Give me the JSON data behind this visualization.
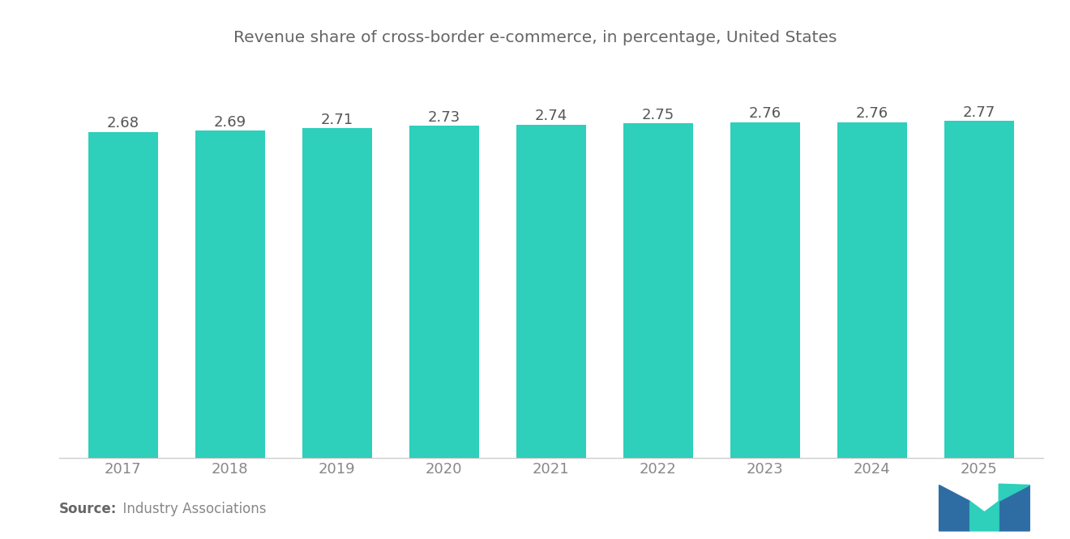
{
  "title": "Revenue share of cross-border e-commerce, in percentage, United States",
  "categories": [
    "2017",
    "2018",
    "2019",
    "2020",
    "2021",
    "2022",
    "2023",
    "2024",
    "2025"
  ],
  "values": [
    2.68,
    2.69,
    2.71,
    2.73,
    2.74,
    2.75,
    2.76,
    2.76,
    2.77
  ],
  "bar_color": "#2ECFBB",
  "background_color": "#ffffff",
  "title_color": "#666666",
  "label_color": "#555555",
  "tick_color": "#888888",
  "source_bold": "Source:",
  "source_normal": "  Industry Associations",
  "ylim_min": 0,
  "ylim_max": 3.1,
  "title_fontsize": 14.5,
  "label_fontsize": 13,
  "tick_fontsize": 13,
  "source_fontsize": 12,
  "bar_width": 0.65,
  "logo_blue": "#2e6da4",
  "logo_teal": "#2ECFBB"
}
